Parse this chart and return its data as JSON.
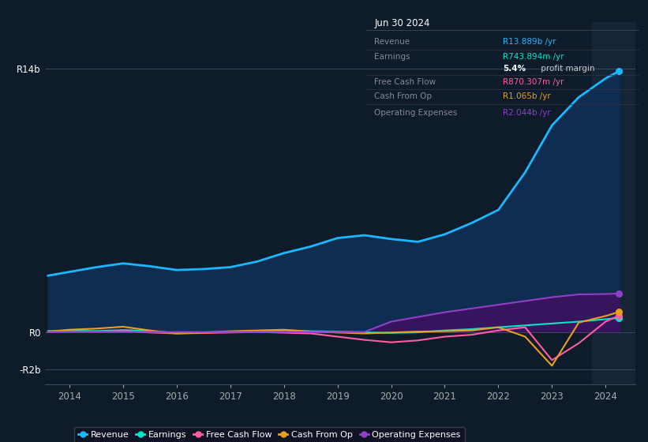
{
  "background_color": "#0d1b2a",
  "plot_bg_color": "#0d1b2a",
  "highlight_bg": "#162030",
  "years": [
    2013.6,
    2014.0,
    2014.5,
    2015.0,
    2015.5,
    2016.0,
    2016.5,
    2017.0,
    2017.5,
    2018.0,
    2018.5,
    2019.0,
    2019.5,
    2020.0,
    2020.5,
    2021.0,
    2021.5,
    2022.0,
    2022.5,
    2023.0,
    2023.5,
    2024.0,
    2024.25
  ],
  "revenue": [
    3.0,
    3.2,
    3.45,
    3.65,
    3.5,
    3.3,
    3.35,
    3.45,
    3.75,
    4.2,
    4.55,
    5.0,
    5.15,
    4.95,
    4.8,
    5.2,
    5.8,
    6.5,
    8.5,
    11.0,
    12.5,
    13.5,
    13.889
  ],
  "earnings": [
    0.05,
    0.07,
    0.05,
    0.1,
    0.05,
    -0.05,
    -0.02,
    0.02,
    0.05,
    0.08,
    0.04,
    0.02,
    -0.02,
    -0.05,
    -0.02,
    0.08,
    0.15,
    0.25,
    0.35,
    0.45,
    0.55,
    0.68,
    0.744
  ],
  "free_cash_flow": [
    0.0,
    0.03,
    0.02,
    0.06,
    -0.03,
    -0.08,
    -0.06,
    -0.03,
    0.0,
    -0.04,
    -0.08,
    -0.25,
    -0.42,
    -0.55,
    -0.45,
    -0.25,
    -0.15,
    0.08,
    0.25,
    -1.5,
    -0.6,
    0.55,
    0.87
  ],
  "cash_from_op": [
    0.02,
    0.12,
    0.18,
    0.28,
    0.08,
    -0.08,
    -0.03,
    0.04,
    0.08,
    0.12,
    0.02,
    -0.03,
    -0.08,
    -0.03,
    0.02,
    0.04,
    0.08,
    0.25,
    -0.25,
    -1.8,
    0.5,
    0.85,
    1.065
  ],
  "operating_expenses": [
    0.0,
    0.0,
    0.0,
    0.0,
    0.0,
    0.0,
    0.0,
    0.0,
    0.0,
    0.0,
    0.0,
    0.0,
    0.0,
    0.55,
    0.8,
    1.05,
    1.25,
    1.45,
    1.65,
    1.85,
    2.0,
    2.02,
    2.044
  ],
  "revenue_color": "#1cb8ff",
  "revenue_fill": "#0e2d50",
  "earnings_color": "#00e5cc",
  "free_cash_flow_color": "#ff5fa0",
  "cash_from_op_color": "#e8a020",
  "operating_expenses_color": "#9040c8",
  "operating_expenses_fill": "#3d1260",
  "ylim": [
    -2.8,
    16.5
  ],
  "xlim_left": 2013.55,
  "xlim_right": 2024.55,
  "ytick_vals": [
    -2,
    0,
    14
  ],
  "ytick_labels": [
    "-R2b",
    "R0",
    "R14b"
  ],
  "xtick_vals": [
    2014,
    2015,
    2016,
    2017,
    2018,
    2019,
    2020,
    2021,
    2022,
    2023,
    2024
  ],
  "xtick_labels": [
    "2014",
    "2015",
    "2016",
    "2017",
    "2018",
    "2019",
    "2020",
    "2021",
    "2022",
    "2023",
    "2024"
  ],
  "highlight_x_start": 2023.75,
  "info_box": {
    "title": "Jun 30 2024",
    "rows": [
      {
        "label": "Revenue",
        "value": "R13.889b /yr",
        "value_color": "#1cb8ff"
      },
      {
        "label": "Earnings",
        "value": "R743.894m /yr",
        "value_color": "#00e5cc"
      },
      {
        "label": "",
        "value": "5.4%",
        "value2": " profit margin",
        "value_color": "#ffffff",
        "value2_color": "#cccccc",
        "bold": true
      },
      {
        "label": "Free Cash Flow",
        "value": "R870.307m /yr",
        "value_color": "#ff5fa0"
      },
      {
        "label": "Cash From Op",
        "value": "R1.065b /yr",
        "value_color": "#e8a020"
      },
      {
        "label": "Operating Expenses",
        "value": "R2.044b /yr",
        "value_color": "#9040c8"
      }
    ]
  },
  "legend_items": [
    {
      "label": "Revenue",
      "color": "#1cb8ff"
    },
    {
      "label": "Earnings",
      "color": "#00e5cc"
    },
    {
      "label": "Free Cash Flow",
      "color": "#ff5fa0"
    },
    {
      "label": "Cash From Op",
      "color": "#e8a020"
    },
    {
      "label": "Operating Expenses",
      "color": "#9040c8"
    }
  ]
}
